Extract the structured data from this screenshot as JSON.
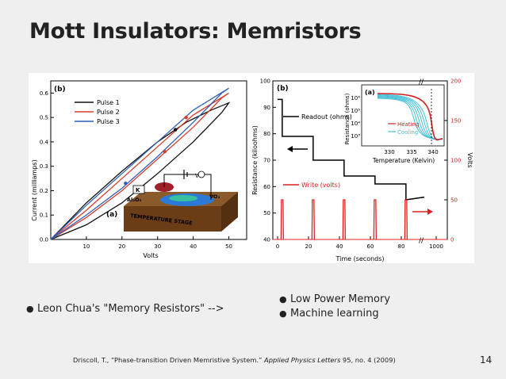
{
  "slide": {
    "title": "Mott Insulators: Memristors",
    "page_number": "14",
    "citation": {
      "prefix": "Driscoll, T., “Phase-transition Driven Memristive System.” ",
      "journal": "Applied Physics Letters",
      "suffix": " 95, no. 4 (2009)"
    },
    "bullets_left": [
      "Leon Chua's \"Memory Resistors\" -->"
    ],
    "bullets_right": [
      "Low Power Memory",
      "Machine learning"
    ]
  },
  "colors": {
    "pulse1": "#111111",
    "pulse2": "#d83b2a",
    "pulse3": "#2f5fb8",
    "heating": "#d02020",
    "cooling": "#45c0d8",
    "write": "#e02020"
  },
  "chart_data": [
    {
      "type": "line",
      "panel_label": "(b)",
      "xlabel": "Volts",
      "ylabel": "Current (milliamps)",
      "xlim": [
        0,
        55
      ],
      "ylim": [
        0,
        0.65
      ],
      "x_ticks": [
        "10",
        "20",
        "30",
        "40",
        "50"
      ],
      "y_ticks": [
        "0.0",
        "0.1",
        "0.2",
        "0.3",
        "0.4",
        "0.5",
        "0.6"
      ],
      "legend": {
        "position": "top-left"
      },
      "series": [
        {
          "name": "Pulse 1",
          "up": [
            [
              0,
              0
            ],
            [
              10,
              0.06
            ],
            [
              20,
              0.15
            ],
            [
              30,
              0.27
            ],
            [
              40,
              0.4
            ],
            [
              48,
              0.52
            ],
            [
              50,
              0.56
            ]
          ],
          "down": [
            [
              50,
              0.56
            ],
            [
              45,
              0.53
            ],
            [
              38,
              0.48
            ],
            [
              30,
              0.4
            ],
            [
              20,
              0.28
            ],
            [
              10,
              0.15
            ],
            [
              0,
              0
            ]
          ]
        },
        {
          "name": "Pulse 2",
          "up": [
            [
              0,
              0
            ],
            [
              10,
              0.09
            ],
            [
              20,
              0.2
            ],
            [
              30,
              0.33
            ],
            [
              40,
              0.46
            ],
            [
              48,
              0.58
            ],
            [
              50,
              0.6
            ]
          ],
          "down": [
            [
              50,
              0.6
            ],
            [
              40,
              0.51
            ],
            [
              30,
              0.38
            ],
            [
              20,
              0.25
            ],
            [
              10,
              0.12
            ],
            [
              0,
              0
            ]
          ]
        },
        {
          "name": "Pulse 3",
          "up": [
            [
              0,
              0
            ],
            [
              10,
              0.1
            ],
            [
              20,
              0.21
            ],
            [
              30,
              0.34
            ],
            [
              40,
              0.48
            ],
            [
              48,
              0.6
            ],
            [
              50,
              0.62
            ]
          ],
          "down": [
            [
              50,
              0.62
            ],
            [
              40,
              0.53
            ],
            [
              30,
              0.4
            ],
            [
              20,
              0.27
            ],
            [
              10,
              0.14
            ],
            [
              0,
              0
            ]
          ]
        }
      ],
      "inset": {
        "panel_label": "(a)",
        "labels": [
          "K",
          "V",
          "Al₂O₃",
          "VO₂",
          "TEMPERATURE STAGE"
        ]
      }
    },
    {
      "type": "line",
      "panel_label": "(b)",
      "xlabel": "Time (seconds)",
      "ylabel": "Resistance (kiloohms)",
      "y2label": "Volts",
      "x_ticks": [
        "0",
        "20",
        "40",
        "60",
        "80",
        "1000"
      ],
      "y_ticks": [
        "40",
        "50",
        "60",
        "70",
        "80",
        "90",
        "100"
      ],
      "y2_ticks": [
        "0",
        "50",
        "100",
        "150",
        "200"
      ],
      "ylim": [
        40,
        100
      ],
      "y2lim": [
        0,
        200
      ],
      "series": [
        {
          "name": "Readout (ohms)",
          "x": [
            0,
            3,
            3,
            23,
            23,
            43,
            43,
            63,
            63,
            83,
            83,
            100
          ],
          "y": [
            93,
            93,
            79,
            79,
            70,
            70,
            64,
            64,
            61,
            61,
            55,
            56
          ]
        },
        {
          "name": "Write (volts)",
          "pulses_at": [
            3,
            23,
            43,
            63,
            83
          ],
          "pulse_level": 50
        }
      ],
      "inset": {
        "panel_label": "(a)",
        "xlabel": "Temperature (Kelvin)",
        "ylabel": "Resistance (ohms)",
        "x_ticks": [
          "330",
          "335",
          "340"
        ],
        "y_ticks": [
          "10⁶",
          "10⁵",
          "10⁴",
          "10³"
        ],
        "legend": [
          "Heating",
          "Cooling"
        ]
      }
    }
  ]
}
